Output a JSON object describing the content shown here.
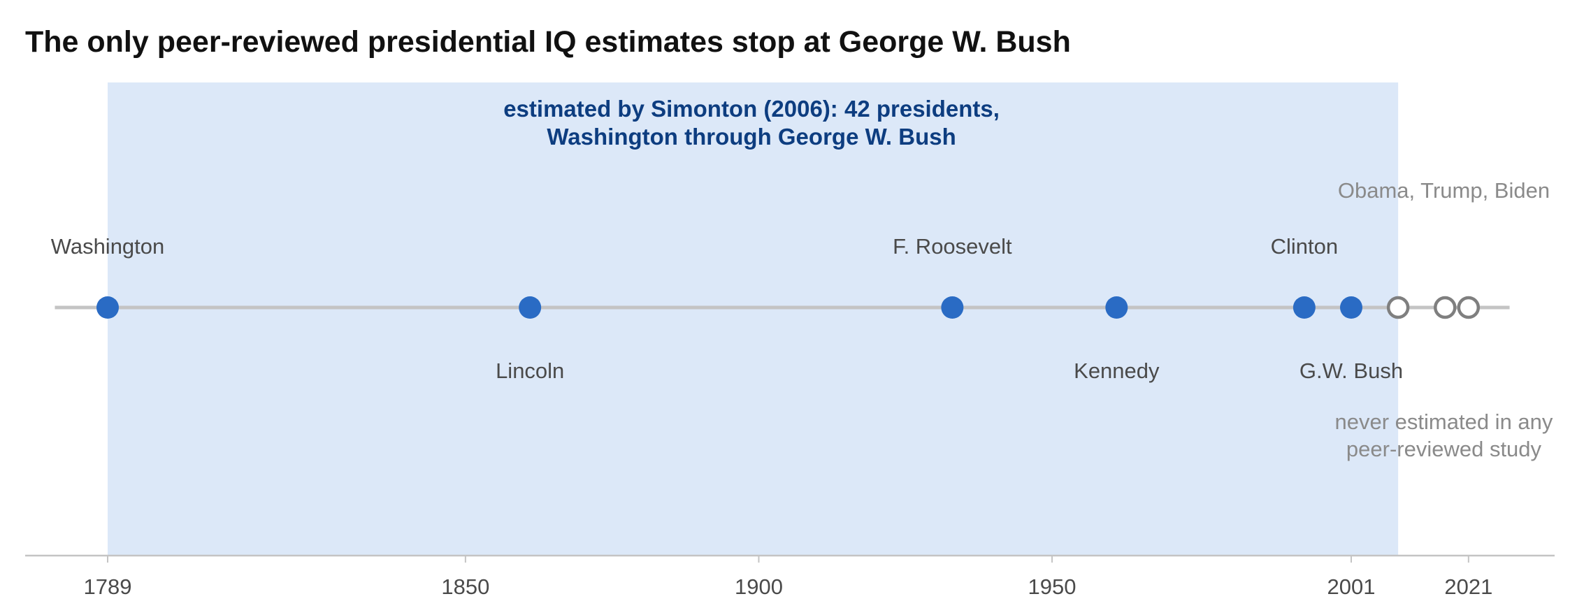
{
  "chart_data": {
    "type": "scatter",
    "title": "The only peer-reviewed presidential IQ estimates stop at George W. Bush",
    "xlabel": "",
    "ylabel": "",
    "xlim": [
      1775,
      2036
    ],
    "x_ticks": [
      1789,
      1850,
      1900,
      1950,
      2001,
      2021
    ],
    "grid": false,
    "legend": "none",
    "band": {
      "x_start": 1789,
      "x_end": 2009,
      "label_lines": [
        "estimated by Simonton (2006): 42 presidents,",
        "Washington through George W. Bush"
      ],
      "color": "#dce8f8",
      "text_color": "#0d3d80"
    },
    "timeline_range": [
      1780,
      2028
    ],
    "series": [
      {
        "estimated": true,
        "color": "#2a6bc4",
        "points": [
          {
            "x": 1789,
            "label": "Washington",
            "label_pos": "above"
          },
          {
            "x": 1861,
            "label": "Lincoln",
            "label_pos": "below"
          },
          {
            "x": 1933,
            "label": "F. Roosevelt",
            "label_pos": "above"
          },
          {
            "x": 1961,
            "label": "Kennedy",
            "label_pos": "below"
          },
          {
            "x": 1993,
            "label": "Clinton",
            "label_pos": "above"
          },
          {
            "x": 2001,
            "label": "G.W. Bush",
            "label_pos": "below"
          }
        ]
      },
      {
        "estimated": false,
        "color": "#7f7f7f",
        "points": [
          {
            "x": 2009
          },
          {
            "x": 2017
          },
          {
            "x": 2021
          }
        ]
      }
    ],
    "annotations": [
      {
        "text_lines": [
          "Obama, Trump, Biden"
        ],
        "position": "above-right"
      },
      {
        "text_lines": [
          "never estimated in any",
          "peer-reviewed study"
        ],
        "position": "below-right"
      }
    ],
    "colors": {
      "timeline": "#c4c4c4",
      "axis": "#c4c4c4",
      "estimated_dot": "#2a6bc4",
      "unestimated_ring": "#7f7f7f",
      "label": "#4a4a4a",
      "annotation": "#8a8a8a"
    }
  }
}
